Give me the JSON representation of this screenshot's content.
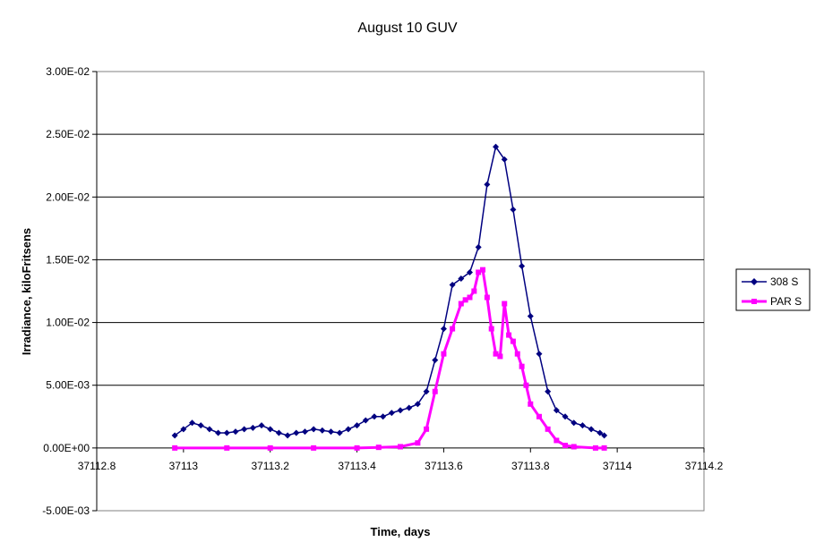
{
  "chart_data": {
    "type": "line",
    "title": "August 10 GUV",
    "xlabel": "Time, days",
    "ylabel": "Irradiance, kiloFritsens",
    "xlim": [
      37112.8,
      37114.2
    ],
    "ylim": [
      -0.005,
      0.03
    ],
    "x_ticks": [
      "37112.8",
      "37113",
      "37113.2",
      "37113.4",
      "37113.6",
      "37113.8",
      "37114",
      "37114.2"
    ],
    "y_ticks": [
      "-5.00E-03",
      "0.00E+00",
      "5.00E-03",
      "1.00E-02",
      "1.50E-02",
      "2.00E-02",
      "2.50E-02",
      "3.00E-02"
    ],
    "grid": "horizontal",
    "legend": "right",
    "series": [
      {
        "name": "308 S",
        "color": "#000080",
        "marker": "diamond",
        "x": [
          37112.98,
          37113.0,
          37113.02,
          37113.04,
          37113.06,
          37113.08,
          37113.1,
          37113.12,
          37113.14,
          37113.16,
          37113.18,
          37113.2,
          37113.22,
          37113.24,
          37113.26,
          37113.28,
          37113.3,
          37113.32,
          37113.34,
          37113.36,
          37113.38,
          37113.4,
          37113.42,
          37113.44,
          37113.46,
          37113.48,
          37113.5,
          37113.52,
          37113.54,
          37113.56,
          37113.58,
          37113.6,
          37113.62,
          37113.64,
          37113.66,
          37113.68,
          37113.7,
          37113.72,
          37113.74,
          37113.76,
          37113.78,
          37113.8,
          37113.82,
          37113.84,
          37113.86,
          37113.88,
          37113.9,
          37113.92,
          37113.94,
          37113.96,
          37113.97
        ],
        "y": [
          0.001,
          0.0015,
          0.002,
          0.0018,
          0.0015,
          0.0012,
          0.0012,
          0.0013,
          0.0015,
          0.0016,
          0.0018,
          0.0015,
          0.0012,
          0.001,
          0.0012,
          0.0013,
          0.0015,
          0.0014,
          0.0013,
          0.0012,
          0.0015,
          0.0018,
          0.0022,
          0.0025,
          0.0025,
          0.0028,
          0.003,
          0.0032,
          0.0035,
          0.0045,
          0.007,
          0.0095,
          0.013,
          0.0135,
          0.014,
          0.016,
          0.021,
          0.024,
          0.023,
          0.019,
          0.0145,
          0.0105,
          0.0075,
          0.0045,
          0.003,
          0.0025,
          0.002,
          0.0018,
          0.0015,
          0.0012,
          0.001
        ]
      },
      {
        "name": "PAR S",
        "color": "#FF00FF",
        "marker": "square",
        "x": [
          37112.98,
          37113.1,
          37113.2,
          37113.3,
          37113.4,
          37113.45,
          37113.5,
          37113.54,
          37113.56,
          37113.58,
          37113.6,
          37113.62,
          37113.64,
          37113.65,
          37113.66,
          37113.67,
          37113.68,
          37113.69,
          37113.7,
          37113.71,
          37113.72,
          37113.73,
          37113.74,
          37113.75,
          37113.76,
          37113.77,
          37113.78,
          37113.79,
          37113.8,
          37113.82,
          37113.84,
          37113.86,
          37113.88,
          37113.9,
          37113.95,
          37113.97
        ],
        "y": [
          0.0,
          0.0,
          0.0,
          0.0,
          0.0,
          5e-05,
          0.0001,
          0.0004,
          0.0015,
          0.0045,
          0.0075,
          0.0095,
          0.0115,
          0.0118,
          0.012,
          0.0125,
          0.014,
          0.0142,
          0.012,
          0.0095,
          0.0075,
          0.0073,
          0.0115,
          0.009,
          0.0085,
          0.0075,
          0.0065,
          0.005,
          0.0035,
          0.0025,
          0.0015,
          0.0006,
          0.0002,
          0.0001,
          0.0,
          0.0
        ]
      }
    ]
  }
}
